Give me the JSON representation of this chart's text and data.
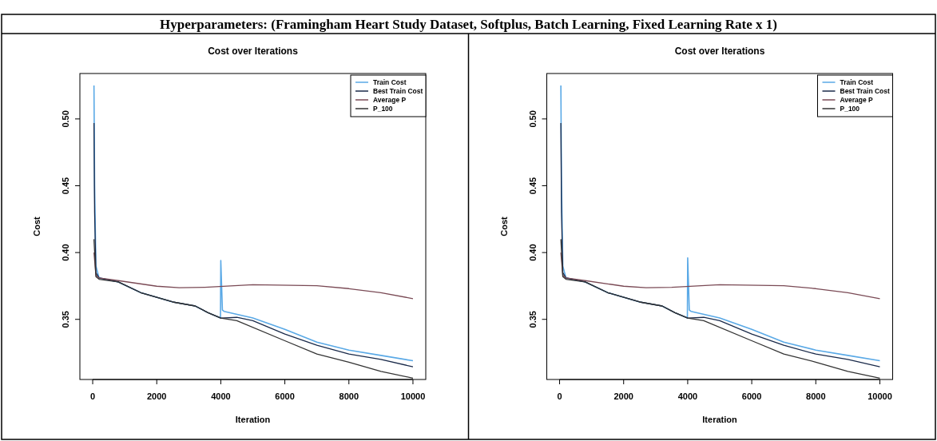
{
  "chart_data": [
    {
      "type": "line",
      "title": "Cost over Iterations",
      "xlabel": "Iteration",
      "ylabel": "Cost",
      "annotations": [
        "Hyperparameters:  (Framingham Heart Study Dataset, Softplus, Batch Learning, Fixed Learning Rate x 1)"
      ],
      "xlim": [
        -400,
        10400
      ],
      "ylim": [
        0.305,
        0.534
      ],
      "xticks": [
        0,
        2000,
        4000,
        6000,
        8000,
        10000
      ],
      "yticks": [
        {
          "value": 0.35,
          "label": "0.35"
        },
        {
          "value": 0.4,
          "label": "0.40"
        },
        {
          "value": 0.45,
          "label": "0.45"
        },
        {
          "value": 0.5,
          "label": "0.50"
        }
      ],
      "legend": "top right",
      "grid": false,
      "marker": "none",
      "line_style": "solid",
      "series": [
        {
          "name": "Train Cost",
          "color": "#5aa9e6",
          "x": [
            40,
            60,
            100,
            200,
            800,
            1500,
            2500,
            3200,
            3600,
            3990,
            4000,
            4050,
            4100,
            5000,
            6000,
            7000,
            8000,
            9000,
            10000
          ],
          "values": [
            0.525,
            0.45,
            0.39,
            0.381,
            0.378,
            0.37,
            0.363,
            0.36,
            0.355,
            0.351,
            0.394,
            0.357,
            0.356,
            0.351,
            0.3425,
            0.333,
            0.327,
            0.323,
            0.319
          ]
        },
        {
          "name": "Best Train Cost",
          "color": "#1a2a4a",
          "x": [
            40,
            60,
            100,
            200,
            800,
            1500,
            2500,
            3200,
            3600,
            4000,
            4500,
            5000,
            6000,
            7000,
            8000,
            9000,
            10000
          ],
          "values": [
            0.497,
            0.43,
            0.385,
            0.381,
            0.378,
            0.37,
            0.363,
            0.36,
            0.355,
            0.351,
            0.3515,
            0.349,
            0.339,
            0.3306,
            0.324,
            0.32,
            0.3145
          ]
        },
        {
          "name": "Average P",
          "color": "#7a4a55",
          "x": [
            40,
            100,
            200,
            800,
            2000,
            2700,
            3500,
            5000,
            7000,
            8000,
            9000,
            10000
          ],
          "values": [
            0.4,
            0.383,
            0.381,
            0.379,
            0.3748,
            0.3737,
            0.374,
            0.3759,
            0.3752,
            0.373,
            0.37,
            0.3655
          ]
        },
        {
          "name": "P_100",
          "color": "#333333",
          "x": [
            40,
            100,
            200,
            800,
            1500,
            2500,
            3200,
            3600,
            4000,
            4500,
            6000,
            7000,
            8000,
            9000,
            10000
          ],
          "values": [
            0.41,
            0.382,
            0.38,
            0.378,
            0.37,
            0.363,
            0.36,
            0.355,
            0.351,
            0.349,
            0.334,
            0.324,
            0.318,
            0.311,
            0.306
          ]
        }
      ]
    },
    {
      "type": "line",
      "title": "Cost over Iterations",
      "xlabel": "Iteration",
      "ylabel": "Cost",
      "xlim": [
        -400,
        10400
      ],
      "ylim": [
        0.305,
        0.534
      ],
      "xticks": [
        0,
        2000,
        4000,
        6000,
        8000,
        10000
      ],
      "yticks": [
        {
          "value": 0.35,
          "label": "0.35"
        },
        {
          "value": 0.4,
          "label": "0.40"
        },
        {
          "value": 0.45,
          "label": "0.45"
        },
        {
          "value": 0.5,
          "label": "0.50"
        }
      ],
      "legend": "top right",
      "grid": false,
      "marker": "none",
      "line_style": "solid",
      "series": [
        {
          "name": "Train Cost",
          "color": "#5aa9e6",
          "x": [
            40,
            60,
            100,
            200,
            800,
            1500,
            2500,
            3200,
            3600,
            3990,
            4000,
            4050,
            4100,
            5000,
            6000,
            7000,
            8000,
            9000,
            10000
          ],
          "values": [
            0.525,
            0.45,
            0.39,
            0.381,
            0.378,
            0.37,
            0.363,
            0.36,
            0.355,
            0.351,
            0.396,
            0.357,
            0.356,
            0.351,
            0.3425,
            0.333,
            0.327,
            0.323,
            0.319
          ]
        },
        {
          "name": "Best Train Cost",
          "color": "#1a2a4a",
          "x": [
            40,
            60,
            100,
            200,
            800,
            1500,
            2500,
            3200,
            3600,
            4000,
            4500,
            5000,
            6000,
            7000,
            8000,
            9000,
            10000
          ],
          "values": [
            0.497,
            0.43,
            0.385,
            0.381,
            0.378,
            0.37,
            0.363,
            0.36,
            0.355,
            0.351,
            0.3515,
            0.349,
            0.339,
            0.3306,
            0.324,
            0.32,
            0.3145
          ]
        },
        {
          "name": "Average P",
          "color": "#7a4a55",
          "x": [
            40,
            100,
            200,
            800,
            2000,
            2700,
            3500,
            5000,
            7000,
            8000,
            9000,
            10000
          ],
          "values": [
            0.4,
            0.383,
            0.381,
            0.379,
            0.3748,
            0.3737,
            0.374,
            0.3759,
            0.3752,
            0.373,
            0.37,
            0.3655
          ]
        },
        {
          "name": "P_100",
          "color": "#333333",
          "x": [
            40,
            100,
            200,
            800,
            1500,
            2500,
            3200,
            3600,
            4000,
            4500,
            6000,
            7000,
            8000,
            9000,
            10000
          ],
          "values": [
            0.41,
            0.382,
            0.38,
            0.378,
            0.37,
            0.363,
            0.36,
            0.355,
            0.351,
            0.349,
            0.334,
            0.324,
            0.318,
            0.311,
            0.306
          ]
        }
      ]
    }
  ]
}
